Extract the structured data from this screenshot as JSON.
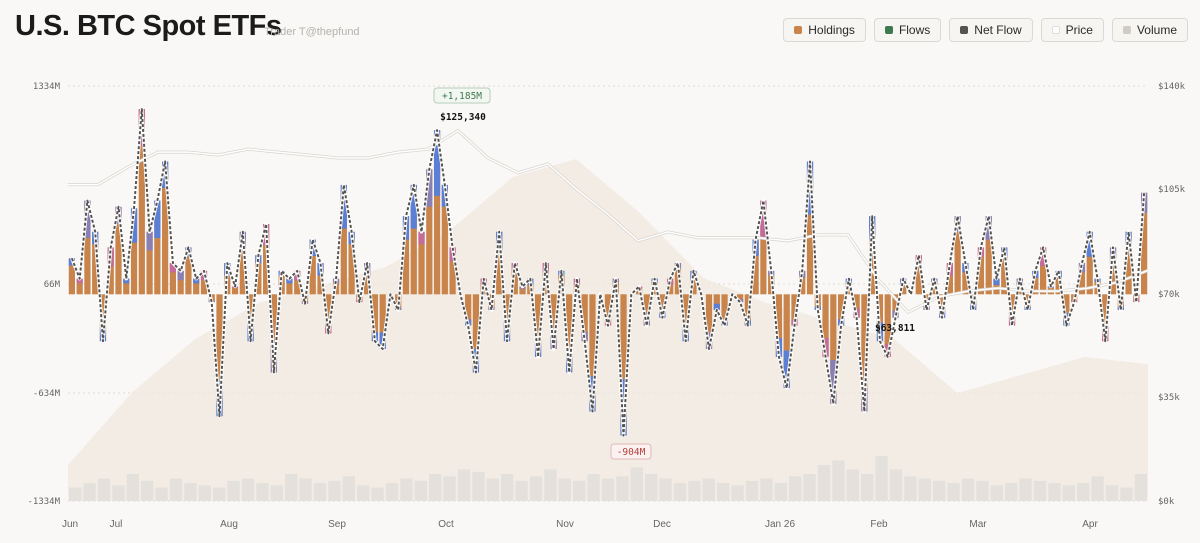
{
  "header": {
    "title": "U.S. BTC Spot ETFs",
    "subtitle": "Trader T@thepfund"
  },
  "legend": [
    {
      "label": "Holdings",
      "color": "#c8844a"
    },
    {
      "label": "Flows",
      "color": "#3f7a4f"
    },
    {
      "label": "Net Flow",
      "color": "#555350"
    },
    {
      "label": "Price",
      "color": "#ffffff"
    },
    {
      "label": "Volume",
      "color": "#cfccc5"
    }
  ],
  "chart_data": {
    "type": "bar",
    "title": "U.S. BTC Spot ETFs",
    "left_axis": {
      "ticks": [
        "1334M",
        "66M",
        "-634M",
        "-1334M"
      ],
      "range_musd": [
        -1334,
        1334
      ]
    },
    "right_axis": {
      "ticks": [
        "$140k",
        "$105k",
        "$70k",
        "$35k",
        "$0k"
      ],
      "range_kusd": [
        0,
        140
      ]
    },
    "x_ticks": [
      "Jun",
      "Jul",
      "Aug",
      "Sep",
      "Oct",
      "Nov",
      "Dec",
      "Jan 26",
      "Feb",
      "Mar",
      "Apr"
    ],
    "grid": true,
    "annotations": {
      "max_flow": "+1,185M",
      "min_flow": "-904M",
      "price_high": "$125,340",
      "price_low": "$63,811"
    },
    "series": [
      {
        "name": "Net Flow",
        "unit": "M USD",
        "values": [
          230,
          100,
          600,
          400,
          -300,
          300,
          560,
          100,
          550,
          1185,
          400,
          600,
          850,
          200,
          150,
          300,
          100,
          150,
          -50,
          -780,
          200,
          50,
          400,
          -300,
          250,
          450,
          -500,
          150,
          100,
          150,
          -60,
          350,
          200,
          -250,
          100,
          700,
          400,
          -50,
          200,
          -300,
          -350,
          0,
          -100,
          500,
          700,
          400,
          800,
          1050,
          700,
          300,
          0,
          -200,
          -500,
          100,
          -100,
          400,
          -300,
          200,
          50,
          100,
          -400,
          200,
          -350,
          150,
          -500,
          100,
          -300,
          -750,
          0,
          -200,
          100,
          -904,
          0,
          50,
          -200,
          100,
          -150,
          100,
          200,
          -300,
          150,
          0,
          -350,
          -100,
          -200,
          0,
          -50,
          -200,
          350,
          600,
          150,
          -400,
          -600,
          -200,
          150,
          850,
          -100,
          -400,
          -700,
          -200,
          100,
          -150,
          -750,
          500,
          -300,
          -400,
          -150,
          100,
          0,
          250,
          -100,
          100,
          -150,
          200,
          500,
          200,
          -100,
          300,
          500,
          100,
          300,
          -200,
          100,
          -100,
          150,
          300,
          50,
          150,
          -200,
          -50,
          200,
          400,
          100,
          -300,
          300,
          -100,
          400,
          -50,
          650
        ]
      },
      {
        "name": "Price",
        "unit": "k USD",
        "values": [
          107,
          107,
          113,
          118,
          118,
          117,
          119,
          118,
          117,
          116,
          116,
          118,
          119,
          125.3,
          116,
          111,
          114,
          105,
          97,
          88,
          91,
          89,
          89,
          89,
          88,
          90,
          90,
          75,
          63.8,
          69,
          71,
          72,
          71,
          71,
          72,
          74,
          78
        ]
      }
    ],
    "volume_relative": [
      0.3,
      0.4,
      0.5,
      0.35,
      0.6,
      0.45,
      0.3,
      0.5,
      0.4,
      0.35,
      0.3,
      0.45,
      0.5,
      0.4,
      0.35,
      0.6,
      0.5,
      0.4,
      0.45,
      0.55,
      0.35,
      0.3,
      0.4,
      0.5,
      0.45,
      0.6,
      0.55,
      0.7,
      0.65,
      0.5,
      0.6,
      0.45,
      0.55,
      0.7,
      0.5,
      0.45,
      0.6,
      0.5,
      0.55,
      0.75,
      0.6,
      0.5,
      0.4,
      0.45,
      0.5,
      0.4,
      0.35,
      0.45,
      0.5,
      0.4,
      0.55,
      0.6,
      0.8,
      0.9,
      0.7,
      0.6,
      1.0,
      0.7,
      0.55,
      0.5,
      0.45,
      0.4,
      0.5,
      0.45,
      0.35,
      0.4,
      0.5,
      0.45,
      0.4,
      0.35,
      0.4,
      0.55,
      0.35,
      0.3,
      0.6
    ],
    "holdings_relative": [
      0.1,
      0.3,
      0.45,
      0.55,
      0.6,
      0.65,
      0.75,
      0.9,
      0.95,
      0.8,
      0.62,
      0.55,
      0.5,
      0.45,
      0.3,
      0.35,
      0.4,
      0.38
    ]
  }
}
